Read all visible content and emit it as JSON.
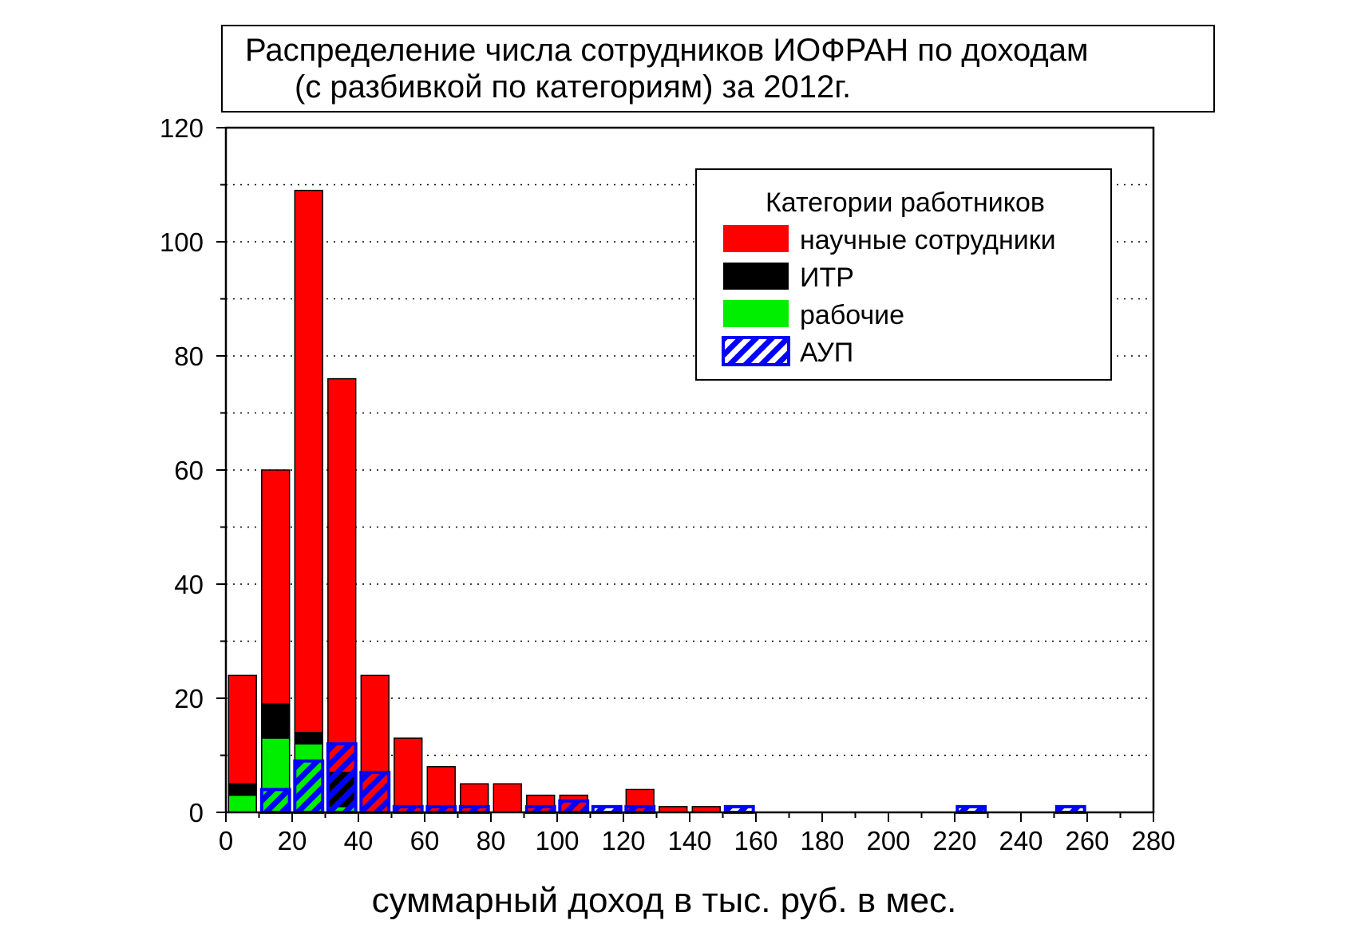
{
  "title": {
    "line1": "Распределение числа сотрудников ИОФРАН по доходам",
    "line2": "(с разбивкой по категориям) за 2012г."
  },
  "chart_data": {
    "type": "bar",
    "xlabel": "суммарный доход в тыс. руб. в мес.",
    "ylabel": "",
    "xlim": [
      0,
      280
    ],
    "ylim": [
      0,
      120
    ],
    "x_ticks": [
      0,
      20,
      40,
      60,
      80,
      100,
      120,
      140,
      160,
      180,
      200,
      220,
      240,
      260,
      280
    ],
    "y_ticks": [
      0,
      20,
      40,
      60,
      80,
      100,
      120
    ],
    "grid": "horizontal dotted",
    "legend": {
      "title": "Категории работников",
      "placement": "top-right"
    },
    "bin_width": 10,
    "bins": [
      5,
      15,
      25,
      35,
      45,
      55,
      65,
      75,
      85,
      95,
      105,
      115,
      125,
      135,
      145,
      155,
      225,
      255
    ],
    "series": [
      {
        "name": "научные сотрудники",
        "color": "#ff0000",
        "pattern": "solid",
        "values": [
          24,
          60,
          109,
          76,
          24,
          13,
          8,
          5,
          5,
          3,
          3,
          0,
          4,
          1,
          1,
          0,
          0,
          0
        ]
      },
      {
        "name": "ИТР",
        "color": "#000000",
        "pattern": "solid",
        "values": [
          5,
          19,
          14,
          7,
          0,
          0,
          0,
          0,
          0,
          0,
          0,
          0,
          0,
          0,
          0,
          0,
          0,
          0
        ]
      },
      {
        "name": "рабочие",
        "color": "#00ee00",
        "pattern": "solid",
        "values": [
          3,
          13,
          12,
          1,
          0,
          0,
          0,
          0,
          0,
          0,
          0,
          0,
          0,
          0,
          0,
          0,
          0,
          0
        ]
      },
      {
        "name": "АУП",
        "color": "#0000ff",
        "pattern": "hatch",
        "values": [
          0,
          4,
          9,
          12,
          7,
          1,
          1,
          1,
          0,
          1,
          2,
          1,
          1,
          0,
          0,
          1,
          1,
          1
        ]
      }
    ]
  }
}
